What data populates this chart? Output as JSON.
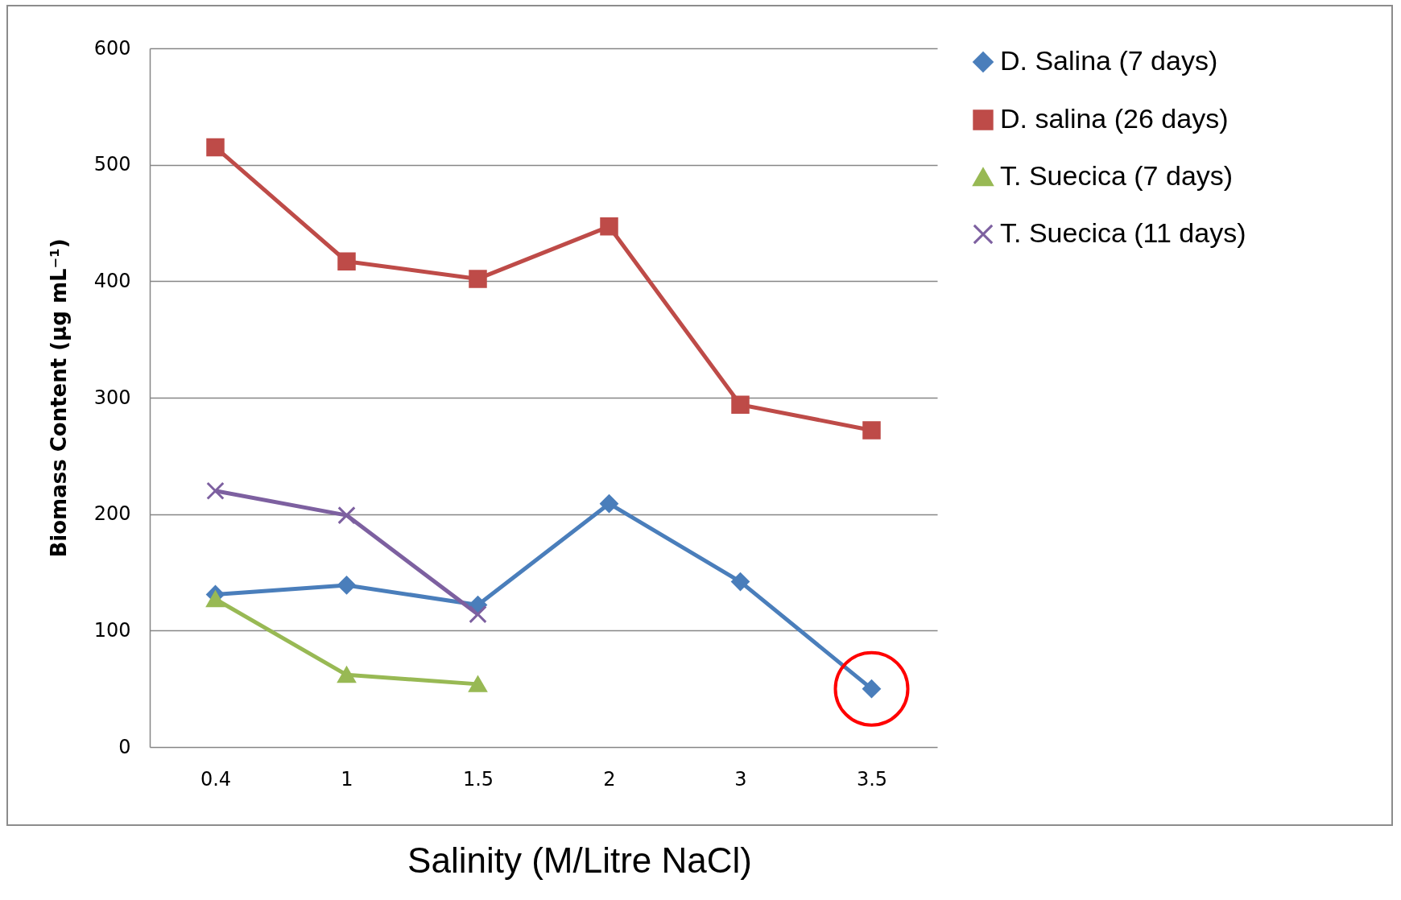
{
  "chart_data": {
    "type": "line",
    "xlabel": "Salinity (M/Litre NaCl)",
    "ylabel": "Biomass Content (µg mL⁻¹)",
    "categories": [
      "0.4",
      "1",
      "1.5",
      "2",
      "3",
      "3.5"
    ],
    "ylim": [
      0,
      600
    ],
    "yticks": [
      0,
      100,
      200,
      300,
      400,
      500,
      600
    ],
    "grid": "y",
    "legend": "right",
    "series": [
      {
        "name": "D. Salina (7 days)",
        "color": "#4a7ebb",
        "marker": "diamond",
        "values": [
          131,
          139,
          122,
          209,
          142,
          50
        ]
      },
      {
        "name": "D. salina (26 days)",
        "color": "#be4b48",
        "marker": "square",
        "values": [
          515,
          417,
          402,
          447,
          294,
          272
        ]
      },
      {
        "name": "T. Suecica (7 days)",
        "color": "#98b954",
        "marker": "triangle",
        "values": [
          127,
          62,
          54,
          null,
          null,
          null
        ]
      },
      {
        "name": "T. Suecica (11 days)",
        "color": "#7d60a0",
        "marker": "cross",
        "values": [
          220,
          199,
          114,
          null,
          null,
          null
        ]
      }
    ]
  }
}
